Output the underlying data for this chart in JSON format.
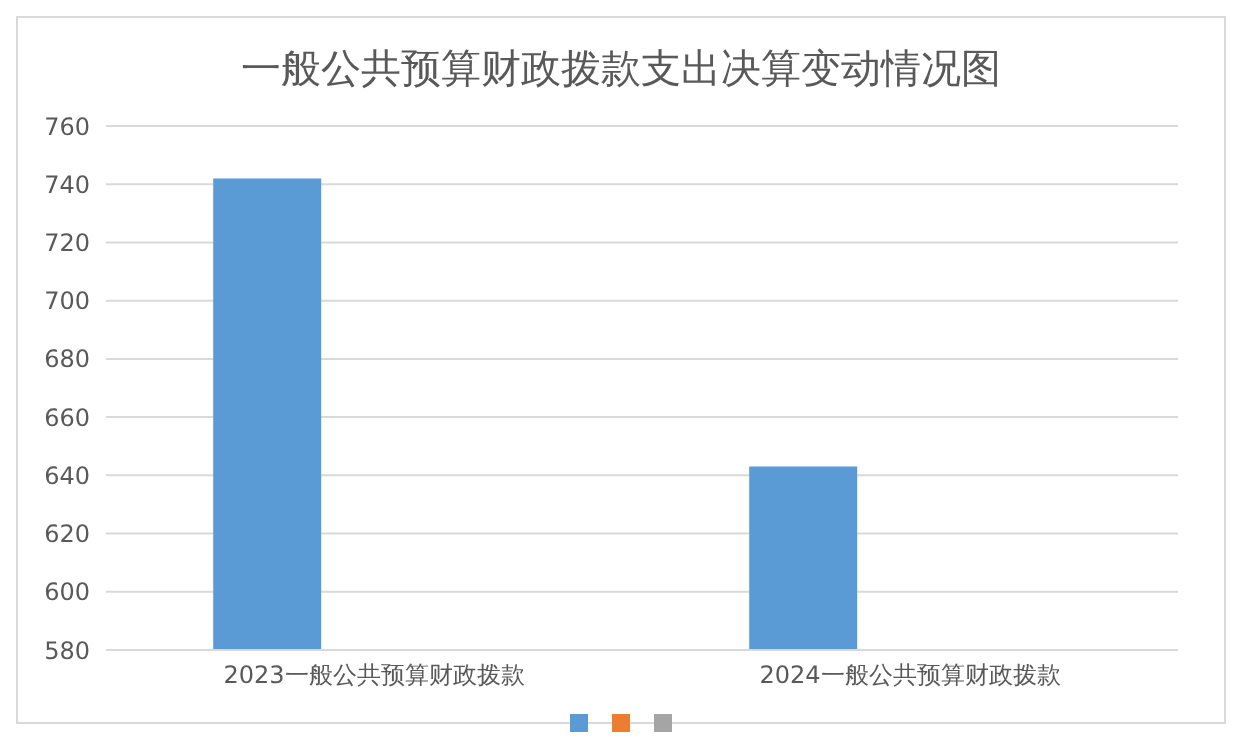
{
  "chart_data": {
    "type": "bar",
    "title": "一般公共预算财政拨款支出决算变动情况图",
    "categories": [
      "2023一般公共预算财政拨款",
      "2024一般公共预算财政拨款"
    ],
    "series": [
      {
        "color": "#5b9bd5",
        "values": [
          742,
          643
        ]
      },
      {
        "color": "#ed7d31",
        "values": [
          null,
          null
        ]
      },
      {
        "color": "#a5a5a5",
        "values": [
          null,
          null
        ]
      }
    ],
    "ylim": [
      580,
      760
    ],
    "yticks": [
      580,
      600,
      620,
      640,
      660,
      680,
      700,
      720,
      740,
      760
    ],
    "grid": "y"
  }
}
